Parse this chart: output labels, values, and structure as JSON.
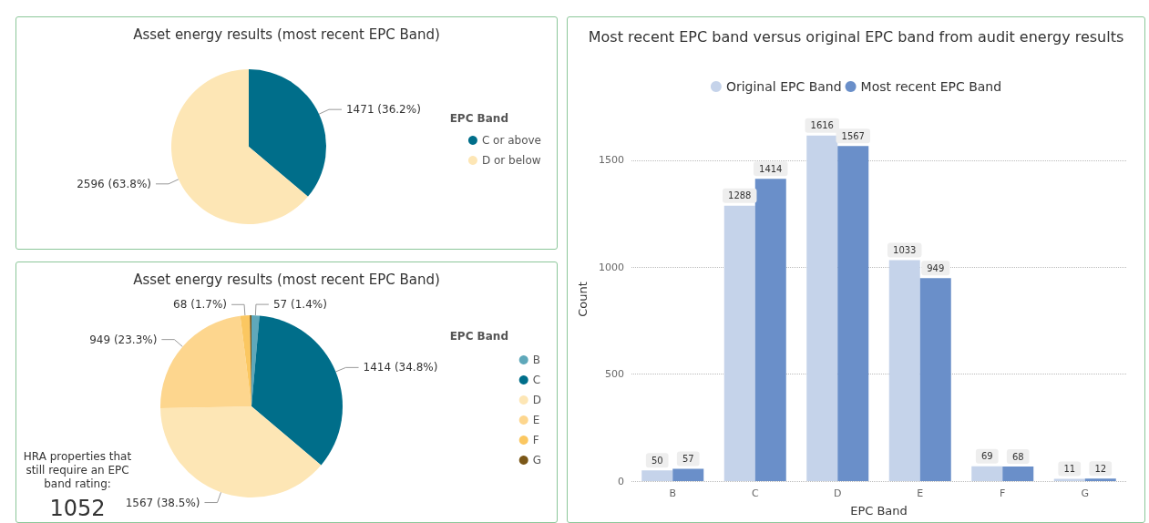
{
  "chart_data": [
    {
      "type": "pie",
      "title": "Asset energy results (most recent EPC Band)",
      "legend_title": "EPC Band",
      "legend": "right",
      "categories": [
        "C or above",
        "D or below"
      ],
      "values": [
        1471,
        2596
      ],
      "colors": [
        "#006e8a",
        "#fde6b5"
      ],
      "value_labels": [
        "1471 (36.2%)",
        "2596 (63.8%)"
      ]
    },
    {
      "type": "pie",
      "title": "Asset energy results (most recent EPC Band)",
      "legend_title": "EPC Band",
      "legend": "right",
      "categories": [
        "B",
        "C",
        "D",
        "E",
        "F",
        "G"
      ],
      "values": [
        57,
        1414,
        1567,
        949,
        68,
        12
      ],
      "colors": [
        "#5fa8ba",
        "#006e8a",
        "#fde6b5",
        "#fdd68e",
        "#fbc761",
        "#7a5718"
      ],
      "value_labels": [
        "57 (1.4%)",
        "1414 (34.8%)",
        "1567 (38.5%)",
        "949 (23.3%)",
        "68 (1.7%)",
        null
      ],
      "annotations": [
        "HRA properties that still require an EPC band rating:",
        "1052"
      ]
    },
    {
      "type": "bar",
      "title": "Most recent EPC band versus original EPC band from audit energy results",
      "xlabel": "EPC Band",
      "ylabel": "Count",
      "categories": [
        "B",
        "C",
        "D",
        "E",
        "F",
        "G"
      ],
      "series": [
        {
          "name": "Original EPC Band",
          "color": "#c5d3ea",
          "values": [
            50,
            1288,
            1616,
            1033,
            69,
            11
          ]
        },
        {
          "name": "Most recent EPC Band",
          "color": "#6a8fc9",
          "values": [
            57,
            1414,
            1567,
            949,
            68,
            12
          ]
        }
      ],
      "ylim": [
        0,
        1700
      ],
      "yticks": [
        0,
        500,
        1000,
        1500
      ],
      "grid": "y",
      "legend": "top",
      "data_labels": true
    }
  ]
}
